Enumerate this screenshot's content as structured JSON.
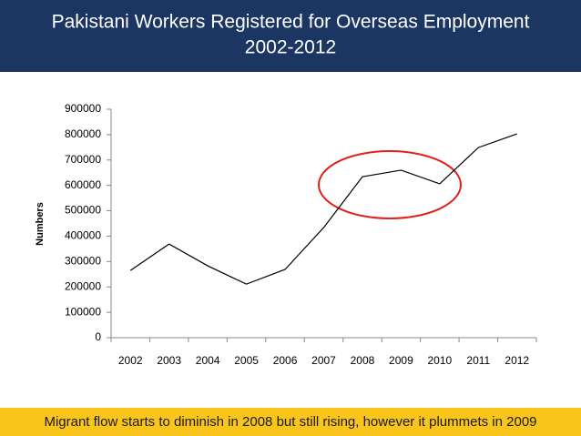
{
  "chart_data": {
    "type": "line",
    "title": [
      "Pakistani Workers Registered for Overseas Employment",
      "2002-2012"
    ],
    "y_label": "Numbers",
    "categories": [
      "2002",
      "2003",
      "2004",
      "2005",
      "2006",
      "2007",
      "2008",
      "2009",
      "2010",
      "2011",
      "2012"
    ],
    "values": [
      265000,
      369000,
      283000,
      211000,
      269000,
      434000,
      634000,
      660000,
      606000,
      749000,
      803000
    ],
    "color": "#000000",
    "ylim": [
      0,
      900000
    ],
    "yticks": [
      0,
      100000,
      200000,
      300000,
      400000,
      500000,
      600000,
      700000,
      800000,
      900000
    ],
    "annotation": "Migrant flow starts to diminish in 2008 but still rising, however it plummets in 2009"
  }
}
